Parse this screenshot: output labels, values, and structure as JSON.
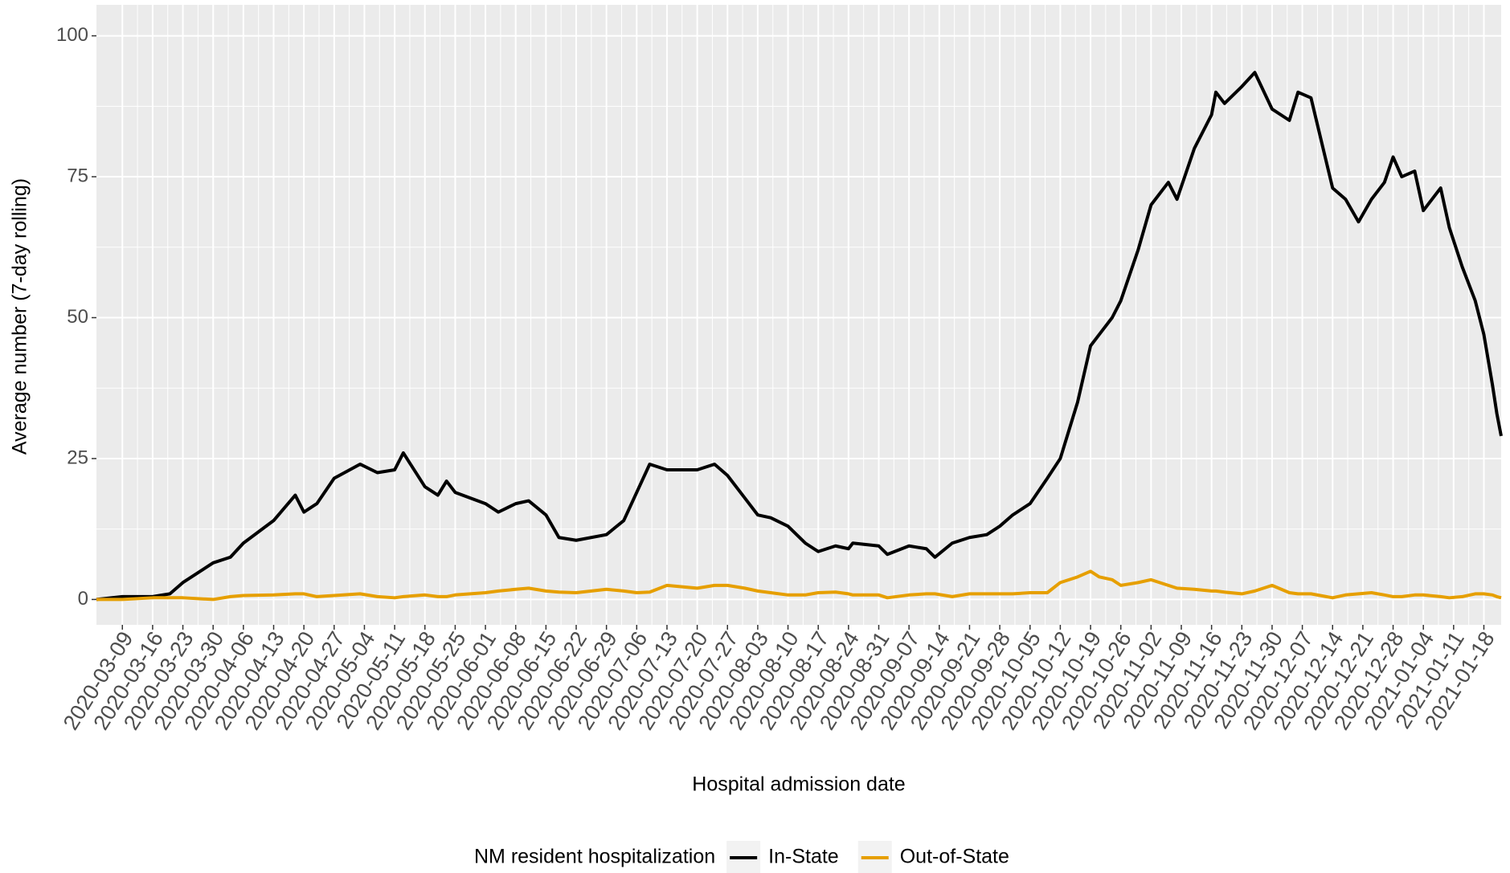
{
  "chart_data": {
    "type": "line",
    "x_label": "Hospital admission date",
    "y_label": "Average number (7-day rolling)",
    "legend_title": "NM resident hospitalization",
    "legend_position": "bottom",
    "grid": true,
    "panel_color": "#ebebeb",
    "xlim": [
      "2020-03-03",
      "2021-01-22"
    ],
    "ylim": [
      -4.5,
      105.5
    ],
    "yticks": [
      0,
      25,
      50,
      75,
      100
    ],
    "xticks": [
      "2020-03-09",
      "2020-03-16",
      "2020-03-23",
      "2020-03-30",
      "2020-04-06",
      "2020-04-13",
      "2020-04-20",
      "2020-04-27",
      "2020-05-04",
      "2020-05-11",
      "2020-05-18",
      "2020-05-25",
      "2020-06-01",
      "2020-06-08",
      "2020-06-15",
      "2020-06-22",
      "2020-06-29",
      "2020-07-06",
      "2020-07-13",
      "2020-07-20",
      "2020-07-27",
      "2020-08-03",
      "2020-08-10",
      "2020-08-17",
      "2020-08-24",
      "2020-08-31",
      "2020-09-07",
      "2020-09-14",
      "2020-09-21",
      "2020-09-28",
      "2020-10-05",
      "2020-10-12",
      "2020-10-19",
      "2020-10-26",
      "2020-11-02",
      "2020-11-09",
      "2020-11-16",
      "2020-11-23",
      "2020-11-30",
      "2020-12-07",
      "2020-12-14",
      "2020-12-21",
      "2020-12-28",
      "2021-01-04",
      "2021-01-11",
      "2021-01-18"
    ],
    "x": [
      "2020-03-03",
      "2020-03-09",
      "2020-03-16",
      "2020-03-20",
      "2020-03-23",
      "2020-03-30",
      "2020-04-03",
      "2020-04-06",
      "2020-04-13",
      "2020-04-18",
      "2020-04-20",
      "2020-04-23",
      "2020-04-27",
      "2020-05-03",
      "2020-05-07",
      "2020-05-11",
      "2020-05-13",
      "2020-05-18",
      "2020-05-21",
      "2020-05-23",
      "2020-05-25",
      "2020-06-01",
      "2020-06-04",
      "2020-06-08",
      "2020-06-11",
      "2020-06-15",
      "2020-06-18",
      "2020-06-22",
      "2020-06-29",
      "2020-07-03",
      "2020-07-06",
      "2020-07-09",
      "2020-07-13",
      "2020-07-20",
      "2020-07-24",
      "2020-07-27",
      "2020-07-31",
      "2020-08-03",
      "2020-08-06",
      "2020-08-10",
      "2020-08-14",
      "2020-08-17",
      "2020-08-21",
      "2020-08-24",
      "2020-08-25",
      "2020-08-31",
      "2020-09-02",
      "2020-09-07",
      "2020-09-11",
      "2020-09-13",
      "2020-09-17",
      "2020-09-21",
      "2020-09-25",
      "2020-09-28",
      "2020-10-01",
      "2020-10-05",
      "2020-10-09",
      "2020-10-12",
      "2020-10-16",
      "2020-10-19",
      "2020-10-21",
      "2020-10-24",
      "2020-10-26",
      "2020-10-30",
      "2020-11-02",
      "2020-11-06",
      "2020-11-08",
      "2020-11-12",
      "2020-11-16",
      "2020-11-17",
      "2020-11-19",
      "2020-11-23",
      "2020-11-26",
      "2020-11-30",
      "2020-12-04",
      "2020-12-06",
      "2020-12-09",
      "2020-12-14",
      "2020-12-17",
      "2020-12-20",
      "2020-12-23",
      "2020-12-26",
      "2020-12-28",
      "2020-12-30",
      "2021-01-02",
      "2021-01-04",
      "2021-01-08",
      "2021-01-10",
      "2021-01-13",
      "2021-01-16",
      "2021-01-18",
      "2021-01-20",
      "2021-01-21",
      "2021-01-22"
    ],
    "series": [
      {
        "name": "In-State",
        "color": "#000000",
        "values": [
          0,
          0.5,
          0.5,
          1,
          3,
          6.5,
          7.5,
          10,
          14,
          18.5,
          15.5,
          17,
          21.5,
          24,
          22.5,
          23,
          26,
          20,
          18.5,
          21,
          19,
          17,
          15.5,
          17,
          17.5,
          15,
          11,
          10.5,
          11.5,
          14,
          19,
          24,
          23,
          23,
          24,
          22,
          18,
          15,
          14.5,
          13,
          10,
          8.5,
          9.5,
          9,
          10,
          9.5,
          8,
          9.5,
          9,
          7.5,
          10,
          11,
          11.5,
          13,
          15,
          17,
          21.5,
          25,
          35,
          45,
          47,
          50,
          53,
          62,
          70,
          74,
          71,
          80,
          86,
          90,
          88,
          91,
          93.5,
          87,
          85,
          90,
          89,
          73,
          71,
          67,
          71,
          74,
          78.5,
          75,
          76,
          69,
          73,
          66,
          59,
          53,
          47,
          38,
          33,
          29
        ]
      },
      {
        "name": "Out-of-State",
        "color": "#e69f00",
        "values": [
          0,
          0,
          0.3,
          0.3,
          0.3,
          0,
          0.5,
          0.7,
          0.8,
          1,
          1,
          0.5,
          0.7,
          1,
          0.5,
          0.3,
          0.5,
          0.8,
          0.5,
          0.5,
          0.8,
          1.2,
          1.5,
          1.8,
          2,
          1.5,
          1.3,
          1.2,
          1.8,
          1.5,
          1.2,
          1.3,
          2.5,
          2,
          2.5,
          2.5,
          2,
          1.5,
          1.2,
          0.8,
          0.8,
          1.2,
          1.3,
          1,
          0.8,
          0.8,
          0.3,
          0.8,
          1,
          1,
          0.5,
          1,
          1,
          1,
          1,
          1.2,
          1.2,
          3,
          4,
          5,
          4,
          3.5,
          2.5,
          3,
          3.5,
          2.5,
          2,
          1.8,
          1.5,
          1.5,
          1.3,
          1,
          1.5,
          2.5,
          1.2,
          1,
          1,
          0.3,
          0.8,
          1,
          1.2,
          0.8,
          0.5,
          0.5,
          0.8,
          0.8,
          0.5,
          0.3,
          0.5,
          1,
          1,
          0.8,
          0.5,
          0.3
        ]
      }
    ]
  }
}
